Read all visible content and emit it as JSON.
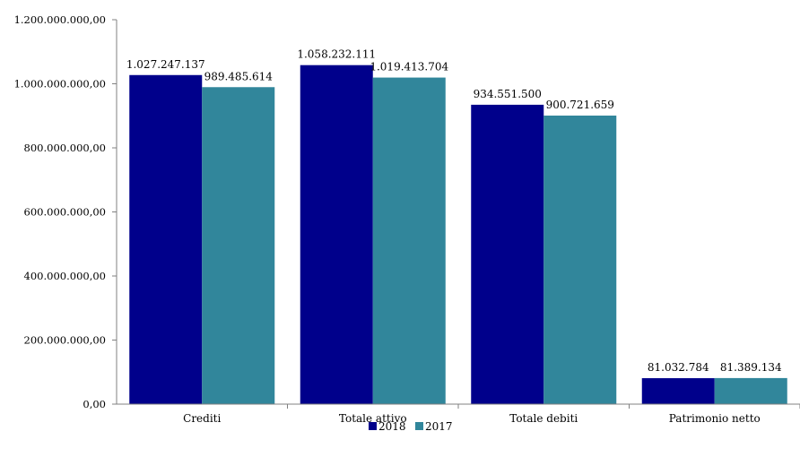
{
  "chart_data": {
    "type": "bar",
    "title": "",
    "xlabel": "",
    "ylabel": "",
    "categories": [
      "Crediti",
      "Totale attivo",
      "Totale debiti",
      "Patrimonio netto"
    ],
    "series": [
      {
        "name": "2018",
        "color": "#00008b",
        "values": [
          1027247137,
          1058232111,
          934551500,
          81032784
        ],
        "labels": [
          "1.027.247.137",
          "1.058.232.111",
          "934.551.500",
          "81.032.784"
        ]
      },
      {
        "name": "2017",
        "color": "#31869b",
        "values": [
          989485614,
          1019413704,
          900721659,
          81389134
        ],
        "labels": [
          "989.485.614",
          "1.019.413.704",
          "900.721.659",
          "81.389.134"
        ]
      }
    ],
    "ylim": [
      0,
      1200000000
    ],
    "yticks": [
      0,
      200000000,
      400000000,
      600000000,
      800000000,
      1000000000,
      1200000000
    ],
    "ytick_labels": [
      "0,00",
      "200.000.000,00",
      "400.000.000,00",
      "600.000.000,00",
      "800.000.000,00",
      "1.000.000.000,00",
      "1.200.000.000,00"
    ],
    "grid": false,
    "legend_position": "bottom"
  }
}
